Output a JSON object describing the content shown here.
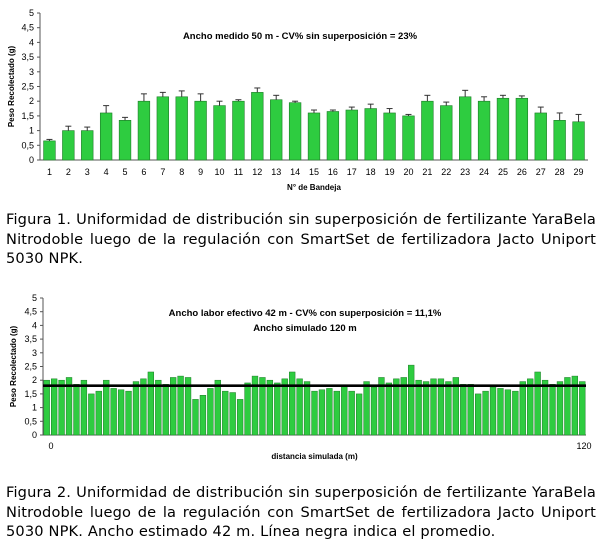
{
  "chart_data": [
    {
      "type": "bar",
      "annotation": "Ancho medido 50 m - CV% sin superposición = 23%",
      "xlabel": "N° de Bandeja",
      "ylabel": "Peso Recolectado (g)",
      "ylim": [
        0,
        5
      ],
      "yticks": [
        "0",
        "0,5",
        "1",
        "1,5",
        "2",
        "2,5",
        "3",
        "3,5",
        "4",
        "4,5",
        "5"
      ],
      "grid": false,
      "bar_color": "#2ecc40",
      "categories": [
        "1",
        "2",
        "3",
        "4",
        "5",
        "6",
        "7",
        "8",
        "9",
        "10",
        "11",
        "12",
        "13",
        "14",
        "15",
        "16",
        "17",
        "18",
        "19",
        "20",
        "21",
        "22",
        "23",
        "24",
        "25",
        "26",
        "27",
        "28",
        "29"
      ],
      "values": [
        0.65,
        1.0,
        1.0,
        1.6,
        1.35,
        2.0,
        2.15,
        2.15,
        2.0,
        1.85,
        2.0,
        2.3,
        2.05,
        1.95,
        1.6,
        1.65,
        1.7,
        1.75,
        1.6,
        1.5,
        2.0,
        1.85,
        2.15,
        2.0,
        2.1,
        2.1,
        1.6,
        1.35,
        1.3
      ],
      "errors": [
        0.05,
        0.15,
        0.12,
        0.25,
        0.1,
        0.25,
        0.15,
        0.2,
        0.25,
        0.15,
        0.05,
        0.15,
        0.15,
        0.05,
        0.1,
        0.05,
        0.1,
        0.15,
        0.15,
        0.05,
        0.2,
        0.12,
        0.22,
        0.15,
        0.1,
        0.08,
        0.2,
        0.25,
        0.25
      ]
    },
    {
      "type": "bar",
      "annotation": "Ancho labor efectivo 42 m - CV% con superposición = 11,1%",
      "annotation2": "Ancho simulado 120 m",
      "xlabel": "distancia simulada (m)",
      "ylabel": "Peso Recolectado (g)",
      "ylim": [
        0,
        5
      ],
      "yticks": [
        "0",
        "0,5",
        "1",
        "1,5",
        "2",
        "2,5",
        "3",
        "3,5",
        "4",
        "4,5",
        "5"
      ],
      "xticks": [
        "0",
        "120"
      ],
      "grid": false,
      "bar_color": "#2ecc40",
      "mean": 1.8,
      "mean_color": "#000000",
      "values": [
        2.0,
        2.05,
        2.0,
        2.1,
        1.85,
        2.0,
        1.5,
        1.6,
        2.0,
        1.7,
        1.65,
        1.6,
        1.95,
        2.05,
        2.3,
        2.0,
        1.85,
        2.1,
        2.15,
        2.1,
        1.3,
        1.45,
        1.7,
        2.0,
        1.6,
        1.55,
        1.3,
        1.9,
        2.15,
        2.1,
        2.0,
        1.9,
        2.05,
        2.3,
        2.05,
        1.95,
        1.6,
        1.65,
        1.7,
        1.6,
        1.8,
        1.6,
        1.5,
        1.95,
        1.75,
        2.1,
        1.9,
        2.05,
        2.1,
        2.55,
        2.0,
        1.95,
        2.05,
        2.05,
        1.95,
        2.1,
        1.85,
        1.85,
        1.5,
        1.6,
        1.75,
        1.7,
        1.65,
        1.6,
        1.95,
        2.05,
        2.3,
        2.0,
        1.85,
        1.95,
        2.1,
        2.15,
        1.95
      ]
    }
  ],
  "captions": {
    "figure1": "Figura 1. Uniformidad de distribución sin superposición de fertilizante YaraBela Nitrodoble luego de la regulación con SmartSet de fertilizadora Jacto Uniport 5030 NPK.",
    "figure2": "Figura 2. Uniformidad de distribución sin superposición de fertilizante YaraBela Nitrodoble luego de la regulación con SmartSet de fertilizadora Jacto Uniport 5030 NPK. Ancho estimado 42 m. Línea negra indica el promedio."
  }
}
